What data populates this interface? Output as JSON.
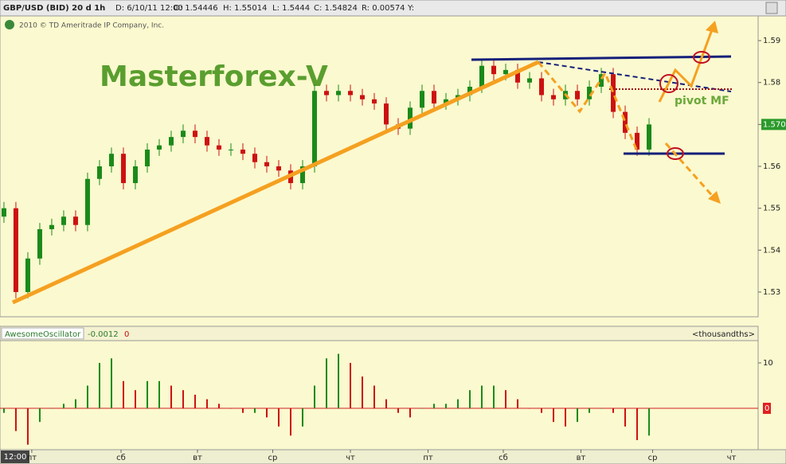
{
  "header": {
    "symbol": "GBP/USD (BID) 20 d 1h",
    "date": "D: 6/10/11 12:00",
    "open": "O: 1.54446",
    "high": "H: 1.55014",
    "low": "L: 1.5444",
    "close": "C: 1.54824",
    "range": "R: 0.00574",
    "y": "Y:",
    "copyright": "2010 © TD Ameritrade IP Company, Inc.",
    "time_box": "12:00"
  },
  "chart_data": [
    {
      "type": "candlestick",
      "annotations": [
        "Masterforex-V",
        "pivot MF"
      ],
      "open": [
        1.548,
        1.55,
        1.53,
        1.538,
        1.545,
        1.546,
        1.548,
        1.546,
        1.557,
        1.56,
        1.563,
        1.556,
        1.56,
        1.564,
        1.565,
        1.567,
        1.5685,
        1.567,
        1.565,
        1.564,
        1.564,
        1.563,
        1.561,
        1.56,
        1.559,
        1.556,
        1.56,
        1.578,
        1.577,
        1.578,
        1.577,
        1.576,
        1.575,
        1.57,
        1.569,
        1.574,
        1.578,
        1.575,
        1.576,
        1.577,
        1.579,
        1.584,
        1.582,
        1.583,
        1.58,
        1.581,
        1.577,
        1.576,
        1.578,
        1.576,
        1.579,
        1.582,
        1.573,
        1.568,
        1.564
      ],
      "high": [
        1.5515,
        1.5515,
        1.5395,
        1.5465,
        1.5475,
        1.5495,
        1.5495,
        1.5585,
        1.5615,
        1.5645,
        1.5645,
        1.5615,
        1.5655,
        1.5665,
        1.5685,
        1.57,
        1.57,
        1.5685,
        1.5665,
        1.5655,
        1.5655,
        1.5645,
        1.5625,
        1.5615,
        1.5605,
        1.5615,
        1.5795,
        1.5795,
        1.5795,
        1.5795,
        1.5785,
        1.5775,
        1.5765,
        1.5715,
        1.5755,
        1.5795,
        1.5795,
        1.5775,
        1.5785,
        1.5805,
        1.5855,
        1.5855,
        1.5845,
        1.5845,
        1.5825,
        1.5825,
        1.5785,
        1.5795,
        1.5795,
        1.5805,
        1.5835,
        1.5835,
        1.5745,
        1.5695,
        1.5715
      ],
      "low": [
        1.5465,
        1.5285,
        1.5285,
        1.5365,
        1.5435,
        1.5445,
        1.5445,
        1.5445,
        1.5555,
        1.5585,
        1.5545,
        1.5545,
        1.5585,
        1.5625,
        1.5635,
        1.5655,
        1.5655,
        1.5635,
        1.5625,
        1.5625,
        1.5615,
        1.5595,
        1.5585,
        1.5575,
        1.5545,
        1.5545,
        1.5585,
        1.5755,
        1.5755,
        1.5755,
        1.5745,
        1.5735,
        1.5685,
        1.5675,
        1.5675,
        1.5725,
        1.5735,
        1.5735,
        1.5745,
        1.5755,
        1.5775,
        1.5805,
        1.5805,
        1.5785,
        1.5785,
        1.5755,
        1.5745,
        1.5745,
        1.5745,
        1.5745,
        1.5775,
        1.5715,
        1.5665,
        1.5625,
        1.5625
      ],
      "close": [
        1.55,
        1.53,
        1.538,
        1.545,
        1.546,
        1.548,
        1.546,
        1.557,
        1.56,
        1.563,
        1.556,
        1.56,
        1.564,
        1.565,
        1.567,
        1.5685,
        1.567,
        1.565,
        1.564,
        1.564,
        1.563,
        1.561,
        1.56,
        1.559,
        1.556,
        1.56,
        1.578,
        1.577,
        1.578,
        1.577,
        1.576,
        1.575,
        1.57,
        1.569,
        1.574,
        1.578,
        1.575,
        1.576,
        1.577,
        1.579,
        1.584,
        1.582,
        1.583,
        1.58,
        1.581,
        1.577,
        1.576,
        1.578,
        1.576,
        1.579,
        1.582,
        1.573,
        1.568,
        1.564,
        1.57
      ],
      "up_color": "#1a8a1a",
      "down_color": "#cc1111",
      "ylim": [
        1.5241,
        1.5959
      ],
      "yticks": [
        1.53,
        1.54,
        1.55,
        1.56,
        1.57,
        1.58,
        1.59
      ],
      "marker": {
        "value": 1.57,
        "label": "1.570"
      },
      "xlim": [
        -0.33,
        63.13
      ],
      "xticks": [
        {
          "value": 2.33,
          "label": "пт"
        },
        {
          "value": 9.8,
          "label": "сб"
        },
        {
          "value": 16.2,
          "label": "вт"
        },
        {
          "value": 22.5,
          "label": "ср"
        },
        {
          "value": 29,
          "label": "чт"
        },
        {
          "value": 35.5,
          "label": "пт"
        },
        {
          "value": 41.8,
          "label": "сб"
        },
        {
          "value": 48.3,
          "label": "вт"
        },
        {
          "value": 54.3,
          "label": "ср"
        },
        {
          "value": 60.9,
          "label": "чт"
        }
      ]
    },
    {
      "type": "bar",
      "title": "AwesomeOscillator",
      "current": "-0.0012",
      "zero_label": "0",
      "units": "<thousandths>",
      "values": [
        -1,
        -5,
        -8,
        -3,
        0,
        1,
        2,
        5,
        10,
        11,
        6,
        4,
        6,
        6,
        5,
        4,
        3,
        2,
        1,
        0,
        -1,
        -1,
        -2,
        -4,
        -6,
        -4,
        5,
        11,
        12,
        10,
        7,
        5,
        2,
        -1,
        -2,
        0,
        1,
        1,
        2,
        4,
        5,
        5,
        4,
        2,
        0,
        -1,
        -3,
        -4,
        -3,
        -1,
        0,
        -1,
        -4,
        -7,
        -6
      ],
      "up_color": "#1a8a1a",
      "down_color": "#cc1111",
      "ylim": [
        -9.1,
        14.9
      ],
      "yticks": [
        0,
        10
      ]
    }
  ]
}
